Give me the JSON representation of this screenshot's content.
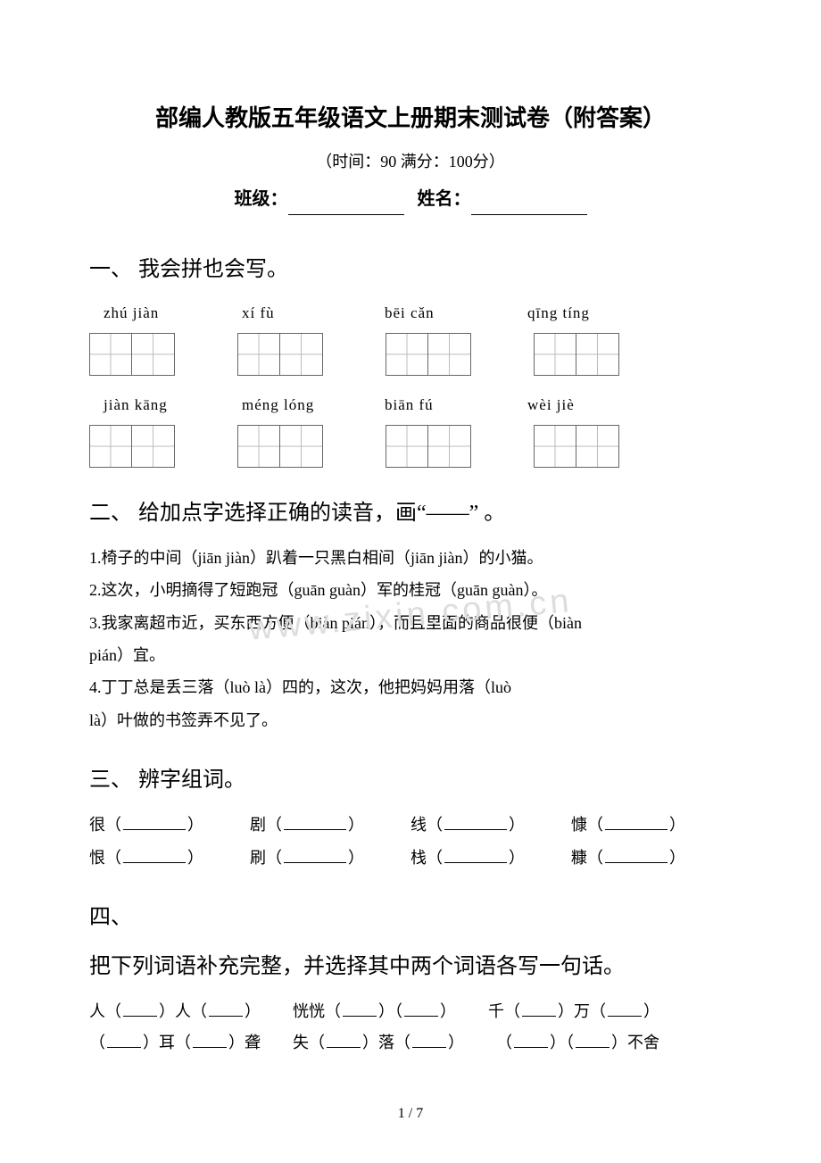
{
  "header": {
    "title": "部编人教版五年级语文上册期末测试卷（附答案）",
    "subtitle": "（时间：90   满分：100分）",
    "class_label": "班级：",
    "name_label": "姓名："
  },
  "q1": {
    "num": "一、",
    "heading": "我会拼也会写。",
    "row1": {
      "p1": "zhú jiàn",
      "p2": "xí fù",
      "p3": "bēi cǎn",
      "p4": "qīng tíng"
    },
    "row2": {
      "p1": "jiàn kāng",
      "p2": "méng lóng",
      "p3": "biān fú",
      "p4": "wèi jiè"
    }
  },
  "q2": {
    "num": "二、",
    "heading": "给加点字选择正确的读音，画“——” 。",
    "l1": "1.椅子的中间（jiān   jiàn）趴着一只黑白相间（jiān   jiàn）的小猫。",
    "l2": "2.这次，小明摘得了短跑冠（guān   guàn）军的桂冠（guān   guàn）。",
    "l3a": "3.我家离超市近，买东西方便（biàn   pián），而且里面的商品很便（biàn",
    "l3b": "pián）宜。",
    "l4a": "4.丁丁总是丢三落（luò   là）四的，这次，他把妈妈用落（luò",
    "l4b": "là）叶做的书签弄不见了。"
  },
  "q3": {
    "num": "三、",
    "heading": "辨字组词。",
    "r1": {
      "a": "很（",
      "b": "剧（",
      "c": "线（",
      "d": "慷（"
    },
    "r2": {
      "a": "恨（",
      "b": "刷（",
      "c": "栈（",
      "d": "糠（"
    },
    "close": "）"
  },
  "q4": {
    "num": "四、",
    "heading": "把下列词语补充完整，并选择其中两个词语各写一句话。",
    "row1": {
      "i1a": "人（",
      "i1b": "）人（",
      "i1c": "）",
      "i2a": "恍恍（",
      "i2b": "）（",
      "i2c": "）",
      "i3a": "千（",
      "i3b": "）万（",
      "i3c": "）"
    },
    "row2": {
      "i1a": "（",
      "i1b": "）耳（",
      "i1c": "）聋",
      "i2a": "失（",
      "i2b": "）落（",
      "i2c": "）",
      "i3a": "（",
      "i3b": "）（",
      "i3c": "）不舍"
    }
  },
  "watermark": "www.zixin.com.cn",
  "page_num": "1 / 7"
}
